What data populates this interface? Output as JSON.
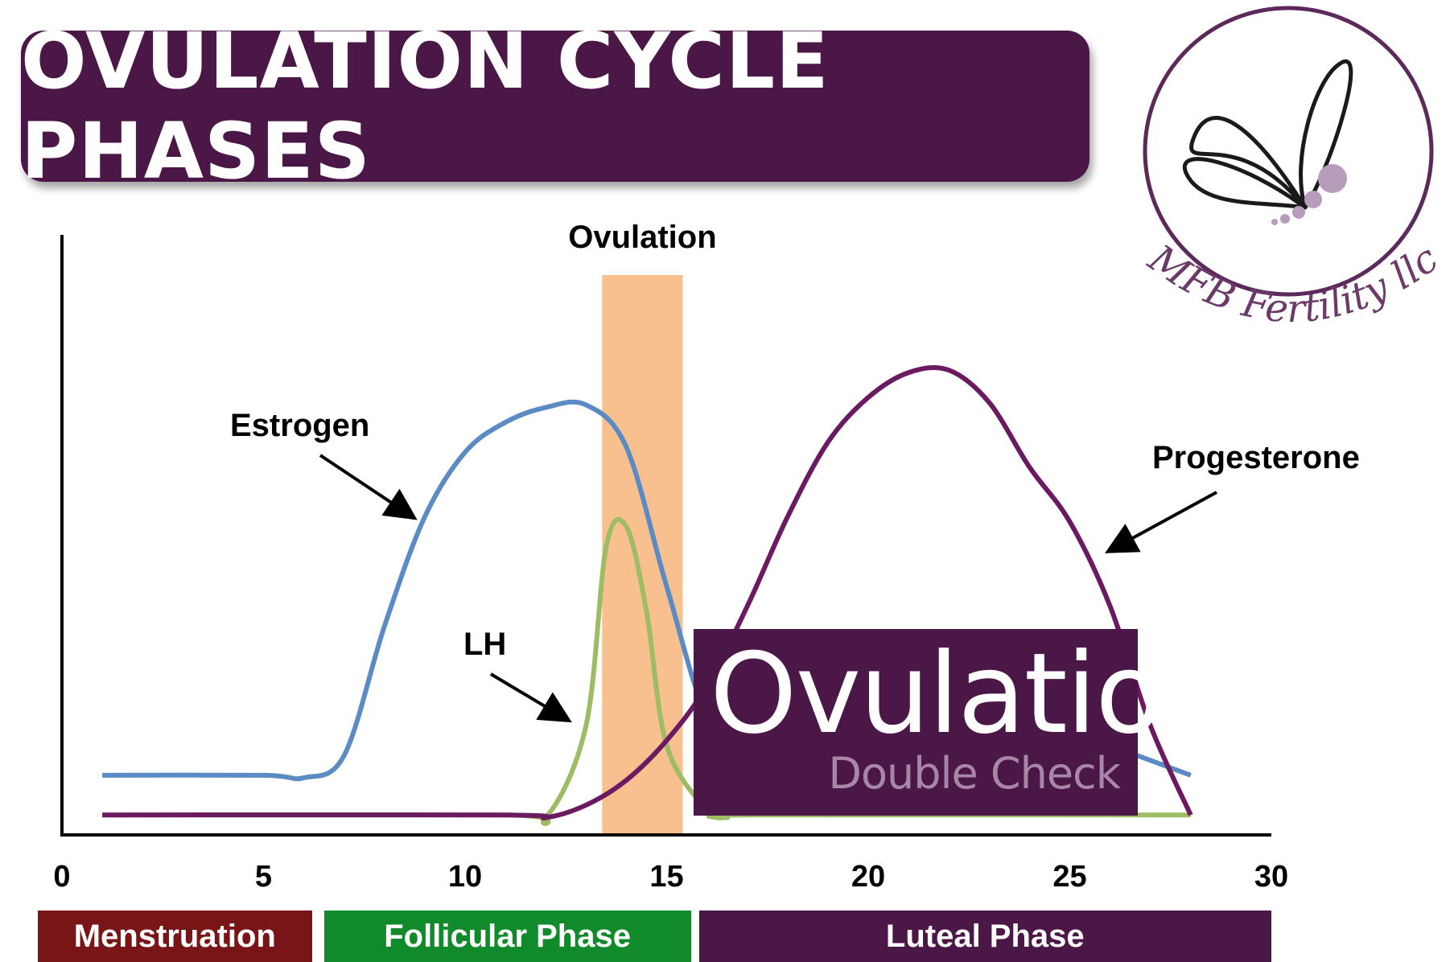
{
  "title": "OVULATION CYCLE PHASES",
  "badge": {
    "main": "Ovulation",
    "sub": "Double Check"
  },
  "logo_text": "MFB Fertility llc",
  "phases": [
    {
      "label": "Menstruation",
      "start": -0.6,
      "end": 6.2,
      "color": "#7a1517"
    },
    {
      "label": "Follicular Phase",
      "start": 6.5,
      "end": 15.6,
      "color": "#118a2b"
    },
    {
      "label": "Luteal Phase",
      "start": 15.8,
      "end": 30,
      "color": "#4a1746"
    }
  ],
  "chart_data": {
    "type": "line",
    "xlim": [
      0,
      30
    ],
    "ylim": [
      0,
      100
    ],
    "x_ticks": [
      0,
      5,
      10,
      15,
      20,
      25,
      30
    ],
    "ovulation_band": {
      "label": "Ovulation",
      "start": 13.4,
      "end": 15.4,
      "color": "#f8c08f"
    },
    "series": [
      {
        "name": "Estrogen",
        "color": "#5b8bc4",
        "points": [
          [
            1,
            12
          ],
          [
            5,
            12
          ],
          [
            6,
            11.5
          ],
          [
            7,
            16
          ],
          [
            8,
            42
          ],
          [
            9,
            64
          ],
          [
            10,
            77
          ],
          [
            11,
            83
          ],
          [
            12,
            86
          ],
          [
            13,
            86.5
          ],
          [
            14,
            78
          ],
          [
            15,
            50
          ],
          [
            16,
            24
          ],
          [
            17,
            20
          ],
          [
            18,
            20
          ],
          [
            19,
            27
          ],
          [
            20,
            37
          ],
          [
            21,
            35
          ],
          [
            22,
            31
          ],
          [
            23,
            27
          ],
          [
            24,
            24
          ],
          [
            25,
            21
          ],
          [
            26,
            18
          ],
          [
            27,
            15
          ],
          [
            28,
            12
          ]
        ]
      },
      {
        "name": "LH",
        "color": "#9dbc63",
        "points": [
          [
            1,
            4
          ],
          [
            11,
            4
          ],
          [
            12,
            3.5
          ],
          [
            13,
            22
          ],
          [
            13.5,
            58
          ],
          [
            14,
            62
          ],
          [
            14.5,
            45
          ],
          [
            15,
            18
          ],
          [
            16,
            5
          ],
          [
            16.5,
            3.5
          ],
          [
            17,
            4
          ],
          [
            28,
            4
          ]
        ]
      },
      {
        "name": "Progesterone",
        "color": "#6b1a62",
        "points": [
          [
            1,
            4
          ],
          [
            11,
            4
          ],
          [
            12,
            3.5
          ],
          [
            13,
            6
          ],
          [
            14,
            11
          ],
          [
            15,
            19
          ],
          [
            16,
            30
          ],
          [
            17,
            46
          ],
          [
            18,
            64
          ],
          [
            19,
            79
          ],
          [
            20,
            88
          ],
          [
            21,
            93
          ],
          [
            22,
            93.5
          ],
          [
            23,
            87
          ],
          [
            24,
            74
          ],
          [
            25,
            63
          ],
          [
            26,
            46
          ],
          [
            27,
            22
          ],
          [
            28,
            4
          ]
        ]
      }
    ],
    "annotations": [
      {
        "label": "Estrogen",
        "series": "Estrogen"
      },
      {
        "label": "LH",
        "series": "LH"
      },
      {
        "label": "Progesterone",
        "series": "Progesterone"
      }
    ]
  }
}
